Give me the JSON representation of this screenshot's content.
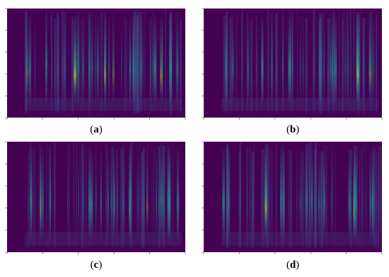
{
  "panels": [
    {
      "prefix": "(",
      "label": "a",
      "suffix": ")"
    },
    {
      "prefix": "(",
      "label": "b",
      "suffix": ")"
    },
    {
      "prefix": "(",
      "label": "c",
      "suffix": ")"
    },
    {
      "prefix": "(",
      "label": "d",
      "suffix": ")"
    }
  ]
}
